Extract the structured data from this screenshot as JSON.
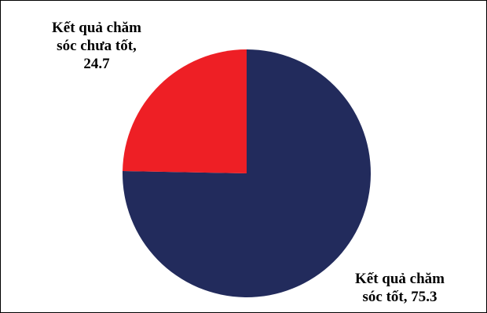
{
  "chart_data": {
    "type": "pie",
    "title": "",
    "legend": "none",
    "slices": [
      {
        "label_lines": [
          "Kết quả chăm",
          "sóc tốt, 75.3"
        ],
        "category": "Kết quả chăm sóc tốt",
        "value": 75.3,
        "color": "#222b5c"
      },
      {
        "label_lines": [
          "Kết quả chăm",
          "sóc chưa tốt,",
          "24.7"
        ],
        "category": "Kết quả chăm sóc chưa tốt",
        "value": 24.7,
        "color": "#ee1f25"
      }
    ]
  }
}
